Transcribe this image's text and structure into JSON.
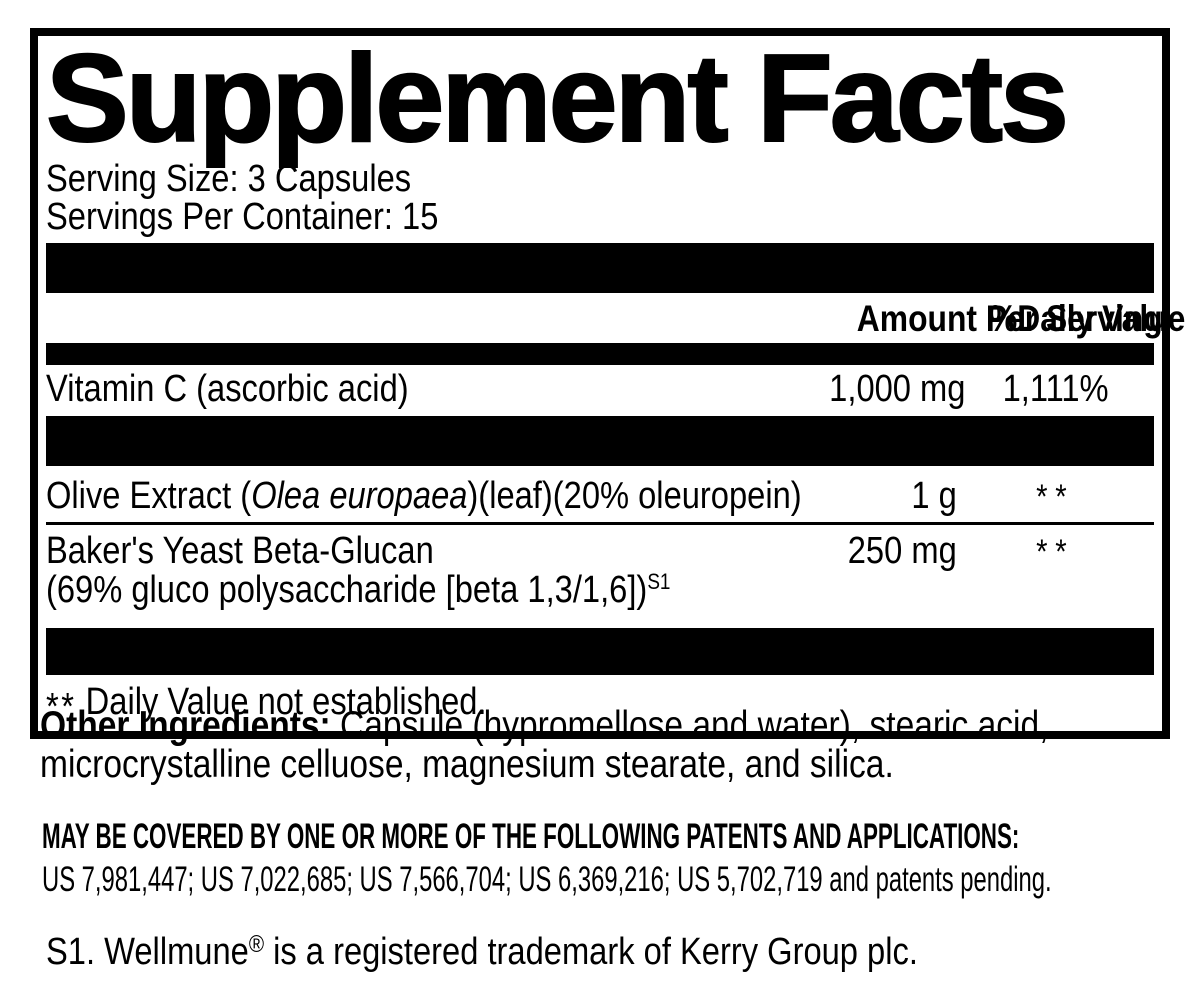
{
  "colors": {
    "ink": "#000000",
    "background": "#ffffff"
  },
  "panel": {
    "title": "Supplement Facts",
    "serving_size": "Serving Size: 3 Capsules",
    "servings_per_container": "Servings Per Container: 15",
    "header": {
      "amount": "Amount Per Serving",
      "daily_value": "%Daily Value"
    },
    "rows": [
      {
        "name": "Vitamin C (ascorbic acid)",
        "amount": "1,000 mg",
        "daily_value": "1,111%"
      },
      {
        "name_prefix": "Olive Extract (",
        "name_italic": "Olea europaea",
        "name_suffix": ")(leaf)(20% oleuropein)",
        "amount": "1 g",
        "daily_value": "**"
      },
      {
        "name": "Baker's Yeast Beta-Glucan",
        "amount": "250 mg",
        "daily_value": "**",
        "sub": "(69% gluco polysaccharide [beta 1,3/1,6])",
        "sub_sup": "S1"
      }
    ],
    "footnote": {
      "symbol": "**",
      "text": "Daily Value not established."
    }
  },
  "other_ingredients": {
    "label": "Other Ingredients:",
    "line1": "Capsule (hypromellose and water), stearic acid,",
    "line2": "microcrystalline celluose, magnesium stearate, and silica."
  },
  "patents": {
    "heading": "MAY BE COVERED BY ONE OR MORE OF THE FOLLOWING PATENTS AND APPLICATIONS:",
    "numbers": "US 7,981,447; US 7,022,685; US 7,566,704; US 6,369,216; US 5,702,719 and patents pending."
  },
  "trademark": {
    "prefix": "S1. Wellmune",
    "reg": "®",
    "suffix": " is a registered trademark of Kerry Group plc."
  }
}
